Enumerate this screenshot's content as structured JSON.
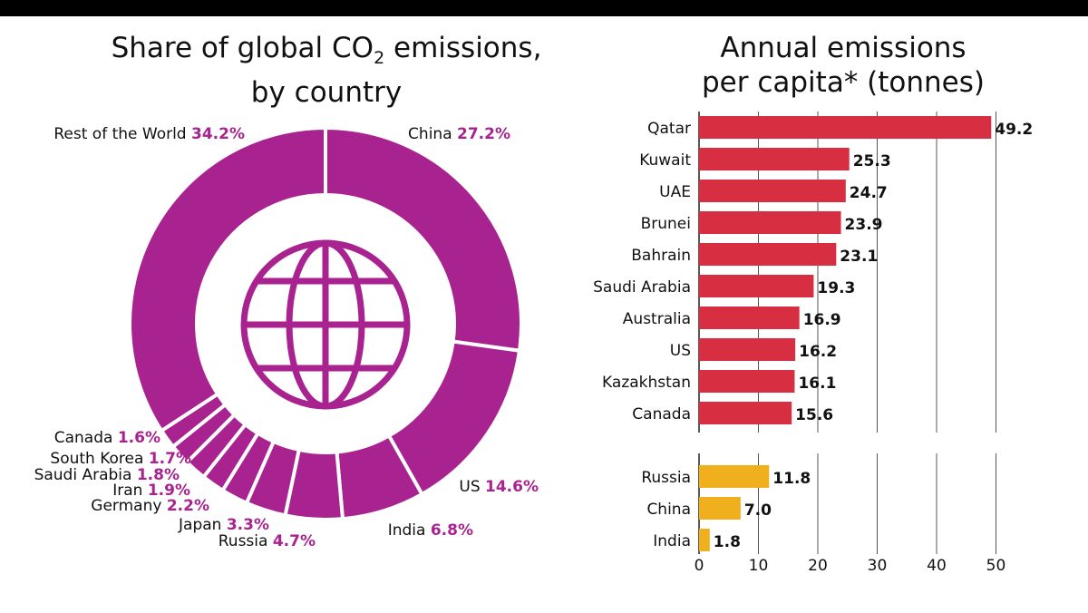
{
  "left_title": {
    "line1_pre": "Share of global CO",
    "sub": "2",
    "line1_post": " emissions,",
    "line2": "by country"
  },
  "right_title": {
    "line1": "Annual emissions",
    "line2": "per capita* (tonnes)"
  },
  "colors": {
    "donut": "#a92390",
    "bar_top": "#d72f41",
    "bar_bottom": "#f0b01e",
    "grid": "#555555"
  },
  "icon": "globe-icon",
  "chart_data": [
    {
      "type": "pie",
      "title": "Share of global CO2 emissions, by country",
      "categories": [
        "China",
        "US",
        "India",
        "Russia",
        "Japan",
        "Germany",
        "Iran",
        "Saudi Arabia",
        "South Korea",
        "Canada",
        "Rest of the World"
      ],
      "values": [
        27.2,
        14.6,
        6.8,
        4.7,
        3.3,
        2.2,
        1.9,
        1.8,
        1.7,
        1.6,
        34.2
      ],
      "labels": [
        "27.2%",
        "14.6%",
        "6.8%",
        "4.7%",
        "3.3%",
        "2.2%",
        "1.9%",
        "1.8%",
        "1.7%",
        "1.6%",
        "34.2%"
      ]
    },
    {
      "type": "bar",
      "title": "Annual emissions per capita* (tonnes)",
      "orientation": "horizontal",
      "series": [
        {
          "categories": [
            "Qatar",
            "Kuwait",
            "UAE",
            "Brunei",
            "Bahrain",
            "Saudi Arabia",
            "Australia",
            "US",
            "Kazakhstan",
            "Canada"
          ],
          "values": [
            49.2,
            25.3,
            24.7,
            23.9,
            23.1,
            19.3,
            16.9,
            16.2,
            16.1,
            15.6
          ],
          "labels": [
            "49.2",
            "25.3",
            "24.7",
            "23.9",
            "23.1",
            "19.3",
            "16.9",
            "16.2",
            "16.1",
            "15.6"
          ]
        },
        {
          "categories": [
            "Russia",
            "China",
            "India"
          ],
          "values": [
            11.8,
            7.0,
            1.8
          ],
          "labels": [
            "11.8",
            "7.0",
            "1.8"
          ]
        }
      ],
      "xlim": [
        0,
        50
      ],
      "xticks": [
        0,
        10,
        20,
        30,
        40,
        50
      ],
      "xtick_labels": [
        "0",
        "10",
        "20",
        "30",
        "40",
        "50"
      ],
      "grid": true
    }
  ]
}
